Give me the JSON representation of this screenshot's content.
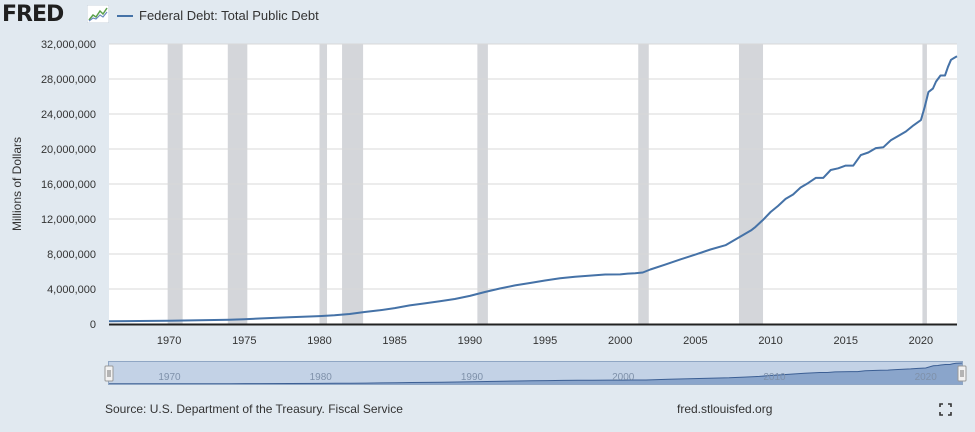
{
  "header": {
    "logo_text": "FRED",
    "logo_icon": "fred-chart-icon",
    "legend_label": "Federal Debt: Total Public Debt"
  },
  "colors": {
    "series": "#4572a7",
    "recession": "#d4d6da",
    "background": "#e1e9f0",
    "plot_background": "#ffffff",
    "navigator_fill": "#c3d2e6",
    "navigator_series": "#5b7fb5"
  },
  "chart_data": {
    "type": "line",
    "ylabel": "Millions of Dollars",
    "xlim": [
      1966.0,
      2022.4
    ],
    "ylim": [
      0,
      32000000
    ],
    "yticks": [
      0,
      4000000,
      8000000,
      12000000,
      16000000,
      20000000,
      24000000,
      28000000,
      32000000
    ],
    "ytick_labels": [
      "0",
      "4,000,000",
      "8,000,000",
      "12,000,000",
      "16,000,000",
      "20,000,000",
      "24,000,000",
      "28,000,000",
      "32,000,000"
    ],
    "xticks": [
      1970,
      1975,
      1980,
      1985,
      1990,
      1995,
      2000,
      2005,
      2010,
      2015,
      2020
    ],
    "xtick_labels": [
      "1970",
      "1975",
      "1980",
      "1985",
      "1990",
      "1995",
      "2000",
      "2005",
      "2010",
      "2015",
      "2020"
    ],
    "grid": true,
    "recessions": [
      [
        1969.9,
        1970.9
      ],
      [
        1973.9,
        1975.2
      ],
      [
        1980.0,
        1980.5
      ],
      [
        1981.5,
        1982.9
      ],
      [
        1990.5,
        1991.2
      ],
      [
        2001.2,
        2001.9
      ],
      [
        2007.9,
        2009.5
      ],
      [
        2020.1,
        2020.4
      ]
    ],
    "series": [
      {
        "name": "Federal Debt: Total Public Debt",
        "x": [
          1966.0,
          1968,
          1970,
          1972,
          1974,
          1975,
          1976,
          1978,
          1980,
          1981,
          1982,
          1983,
          1984,
          1985,
          1986,
          1987,
          1988,
          1989,
          1990,
          1991,
          1992,
          1993,
          1994,
          1995,
          1996,
          1997,
          1998,
          1999,
          2000,
          2000.5,
          2001,
          2001.5,
          2002,
          2003,
          2004,
          2005,
          2006,
          2007,
          2008,
          2008.7,
          2009,
          2009.5,
          2010,
          2010.5,
          2011,
          2011.5,
          2012,
          2012.5,
          2013,
          2013.5,
          2014,
          2014.5,
          2015,
          2015.5,
          2016,
          2016.5,
          2017,
          2017.5,
          2018,
          2018.5,
          2019,
          2019.5,
          2020.0,
          2020.25,
          2020.5,
          2020.8,
          2021.0,
          2021.3,
          2021.6,
          2021.8,
          2022.0,
          2022.2,
          2022.4
        ],
        "values": [
          320000,
          348000,
          380000,
          430000,
          480000,
          540000,
          630000,
          770000,
          900000,
          1000000,
          1140000,
          1370000,
          1570000,
          1820000,
          2120000,
          2350000,
          2600000,
          2860000,
          3210000,
          3660000,
          4060000,
          4410000,
          4690000,
          4970000,
          5220000,
          5410000,
          5530000,
          5660000,
          5670000,
          5760000,
          5810000,
          5890000,
          6230000,
          6790000,
          7380000,
          7930000,
          8510000,
          9010000,
          10000000,
          10700000,
          11100000,
          11900000,
          12800000,
          13500000,
          14300000,
          14800000,
          15600000,
          16100000,
          16700000,
          16700000,
          17600000,
          17800000,
          18100000,
          18100000,
          19300000,
          19600000,
          20100000,
          20200000,
          21000000,
          21500000,
          22000000,
          22700000,
          23300000,
          24800000,
          26500000,
          26900000,
          27700000,
          28400000,
          28400000,
          29400000,
          30200000,
          30400000,
          30600000
        ]
      }
    ],
    "navigator": {
      "xlabels": [
        "1970",
        "1980",
        "1990",
        "2000",
        "2010",
        "2020"
      ]
    }
  },
  "footer": {
    "source": "Source: U.S. Department of the Treasury. Fiscal Service",
    "url": "fred.stlouisfed.org",
    "fullscreen_icon": "fullscreen-icon"
  }
}
